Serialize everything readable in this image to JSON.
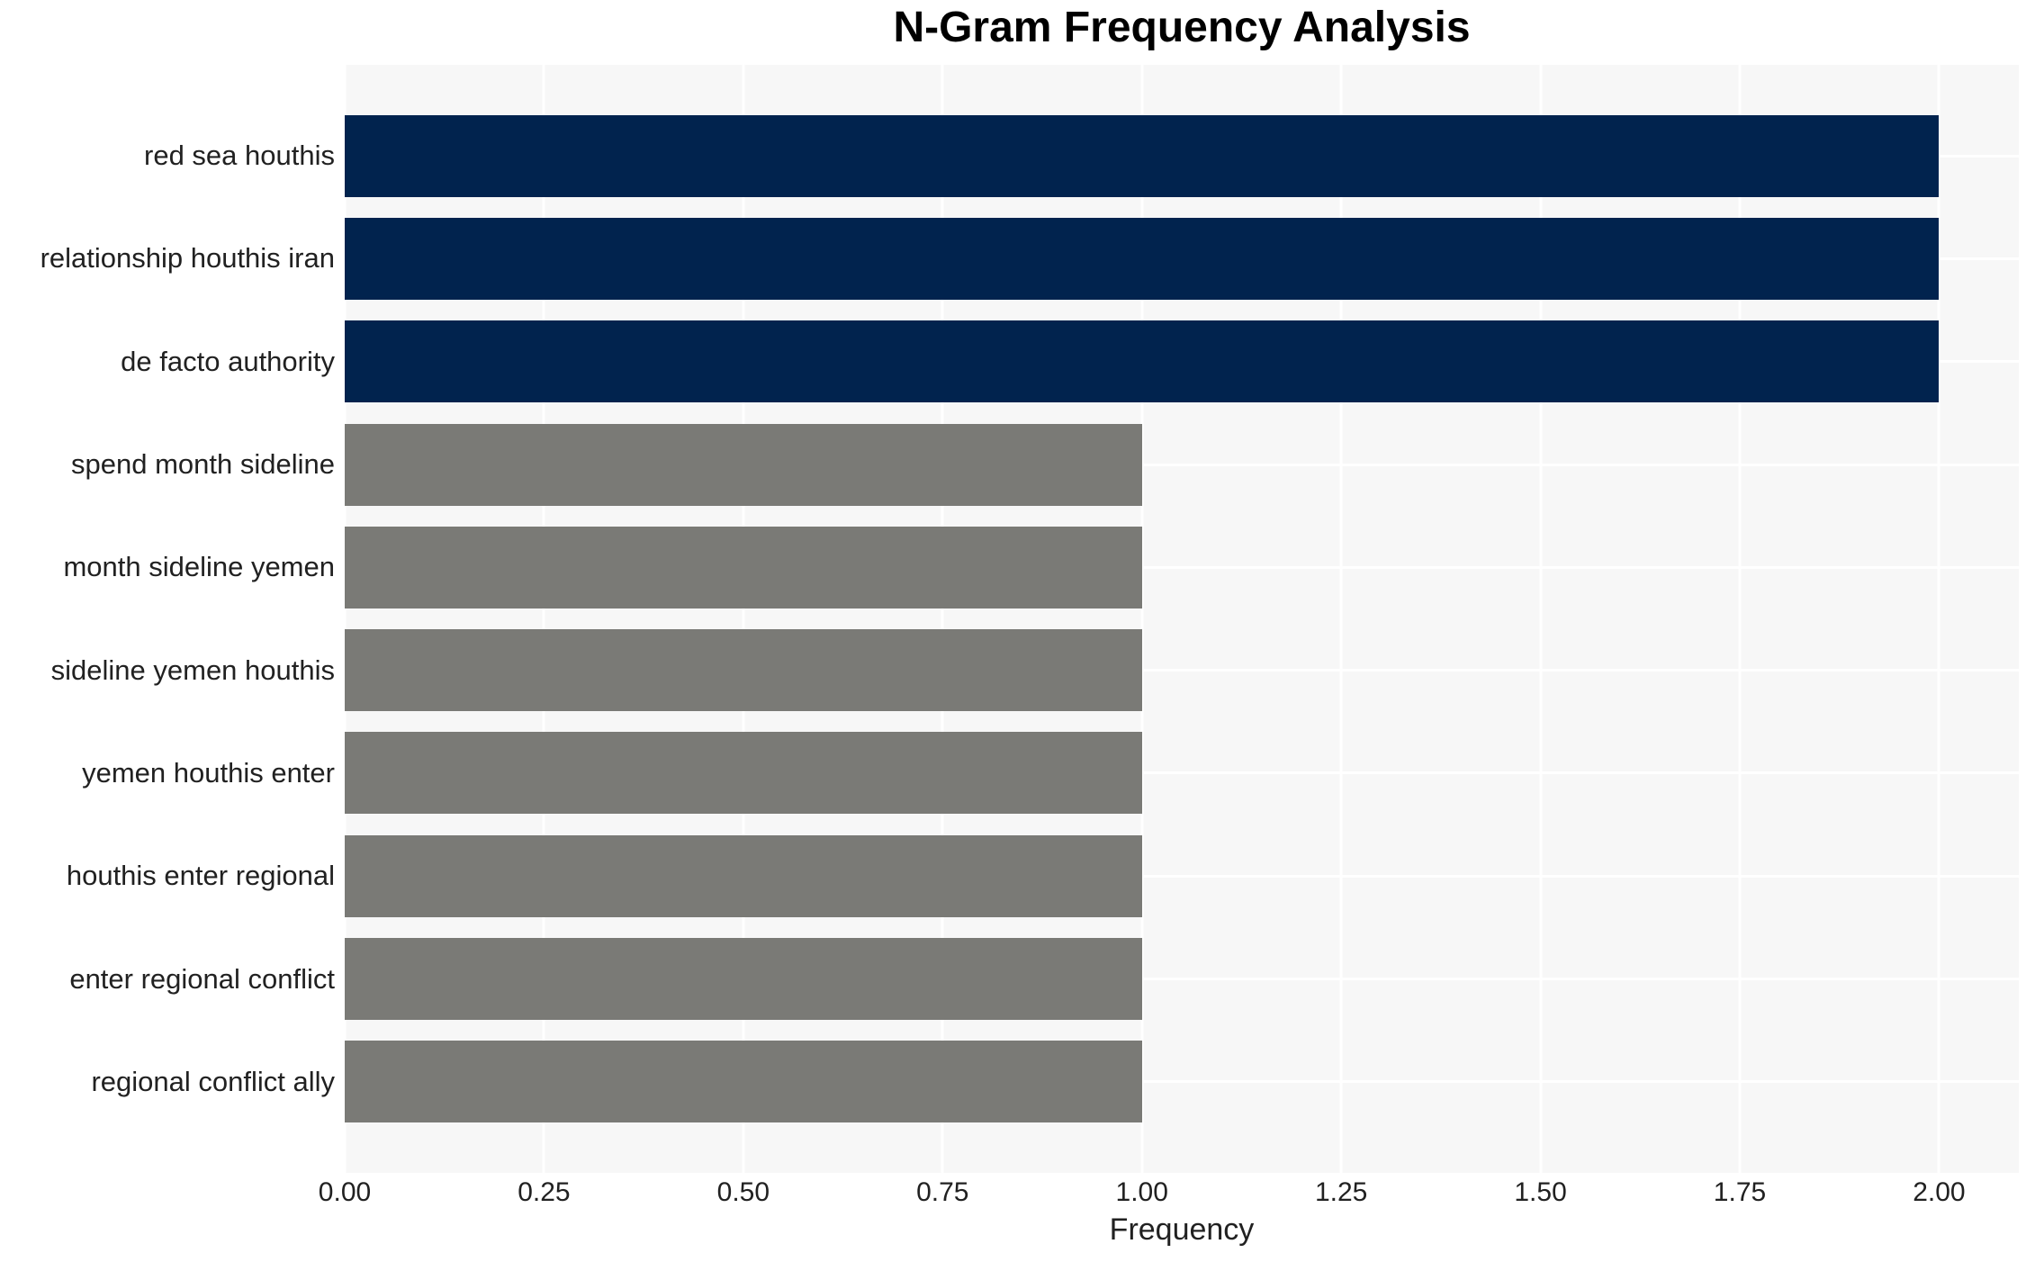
{
  "chart_data": {
    "type": "bar",
    "orientation": "horizontal",
    "title": "N-Gram Frequency Analysis",
    "xlabel": "Frequency",
    "ylabel": "",
    "categories": [
      "red sea houthis",
      "relationship houthis iran",
      "de facto authority",
      "spend month sideline",
      "month sideline yemen",
      "sideline yemen houthis",
      "yemen houthis enter",
      "houthis enter regional",
      "enter regional conflict",
      "regional conflict ally"
    ],
    "values": [
      2,
      2,
      2,
      1,
      1,
      1,
      1,
      1,
      1,
      1
    ],
    "bar_colors": [
      "#01234E",
      "#01234E",
      "#01234E",
      "#7A7A76",
      "#7A7A76",
      "#7A7A76",
      "#7A7A76",
      "#7A7A76",
      "#7A7A76",
      "#7A7A76"
    ],
    "xlim": [
      0,
      2.1
    ],
    "xticks": [
      0,
      0.25,
      0.5,
      0.75,
      1,
      1.25,
      1.5,
      1.75,
      2
    ],
    "xtick_labels": [
      "0.00",
      "0.25",
      "0.50",
      "0.75",
      "1.00",
      "1.25",
      "1.50",
      "1.75",
      "2.00"
    ],
    "grid": {
      "vertical": true,
      "horizontal": true,
      "gridline_color": "#FFFFFF"
    },
    "legend": false,
    "colors": {
      "highlight_bar": "#01234E",
      "default_bar": "#7A7A76",
      "plot_background": "#F7F7F7",
      "figure_background": "#FFFFFF",
      "text": "#212121",
      "title_text": "#000000"
    }
  }
}
